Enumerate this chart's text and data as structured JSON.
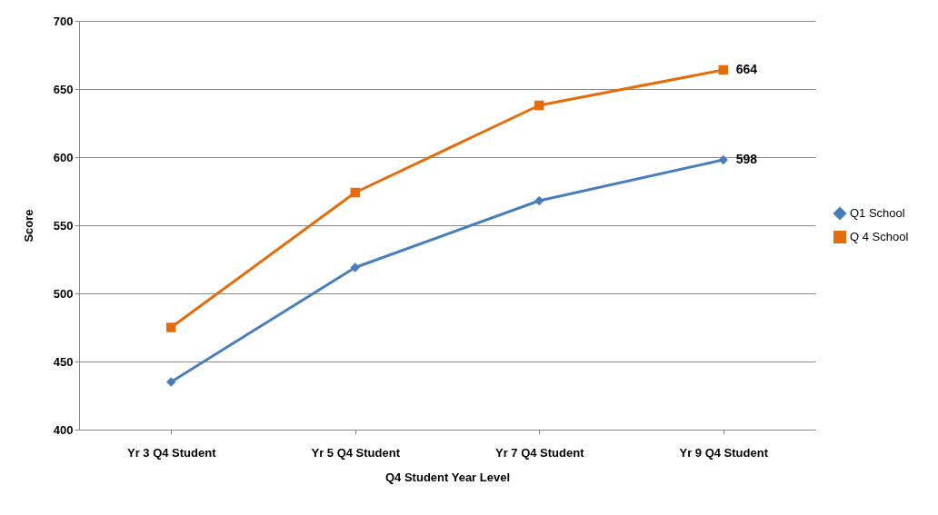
{
  "chart_data": {
    "type": "line",
    "xlabel": "Q4 Student Year Level",
    "ylabel": "Score",
    "categories": [
      "Yr 3 Q4 Student",
      "Yr 5 Q4 Student",
      "Yr 7 Q4 Student",
      "Yr 9 Q4 Student"
    ],
    "series": [
      {
        "name": "Q1 School",
        "color": "#4a7ebb",
        "marker": "diamond",
        "values": [
          435,
          519,
          568,
          598
        ],
        "value_labels": [
          null,
          null,
          null,
          "598"
        ]
      },
      {
        "name": "Q 4 School",
        "color": "#e46c0a",
        "marker": "square",
        "values": [
          475,
          574,
          638,
          664
        ],
        "value_labels": [
          null,
          null,
          null,
          "664"
        ]
      }
    ],
    "ylim": [
      400,
      700
    ],
    "yticks": [
      400,
      450,
      500,
      550,
      600,
      650,
      700
    ],
    "grid": "y",
    "legend": "right"
  }
}
